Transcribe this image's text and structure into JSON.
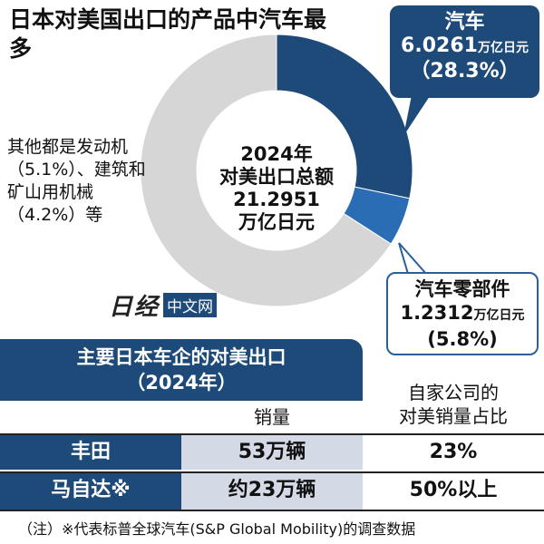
{
  "title": "日本对美国出口的产品中汽车最多",
  "chart_data": {
    "type": "pie",
    "title": "日本对美国出口的产品中汽车最多",
    "center_label": [
      "2024年",
      "对美出口总额",
      "21.2951",
      "万亿日元"
    ],
    "slices": [
      {
        "name": "汽车",
        "value": 6.0261,
        "unit": "万亿日元",
        "percent": "28.3%",
        "color": "#1d4a78"
      },
      {
        "name": "汽车零部件",
        "value": 1.2312,
        "unit": "万亿日元",
        "percent": "5.8%",
        "color": "#2a6db5"
      },
      {
        "name": "其他",
        "value": 14.0378,
        "color": "#d6d6d6"
      }
    ],
    "other_annotation": [
      "其他都是发动机",
      "（5.1%）、建筑和",
      "矿山用机械",
      "（4.2%）等"
    ]
  },
  "callouts": {
    "car": {
      "name": "汽车",
      "value": "6.0261",
      "unit": "万亿日元",
      "percent": "（28.3%）"
    },
    "parts": {
      "name": "汽车零部件",
      "value": "1.2312",
      "unit": "万亿日元",
      "percent": "(5.8%)"
    }
  },
  "logo": {
    "mark": "日经",
    "site": "中文网"
  },
  "table": {
    "title": [
      "主要日本车企的对美出口",
      "（2024年）"
    ],
    "headers": [
      "销量",
      "自家公司的",
      "对美销量占比"
    ],
    "rows": [
      {
        "company": "丰田",
        "sales": "53万辆",
        "share": "23%"
      },
      {
        "company": "马自达※",
        "sales": "约23万辆",
        "share": "50%以上"
      }
    ]
  },
  "note": "（注）※代表标普全球汽车(S&P Global Mobility)的调查数据"
}
